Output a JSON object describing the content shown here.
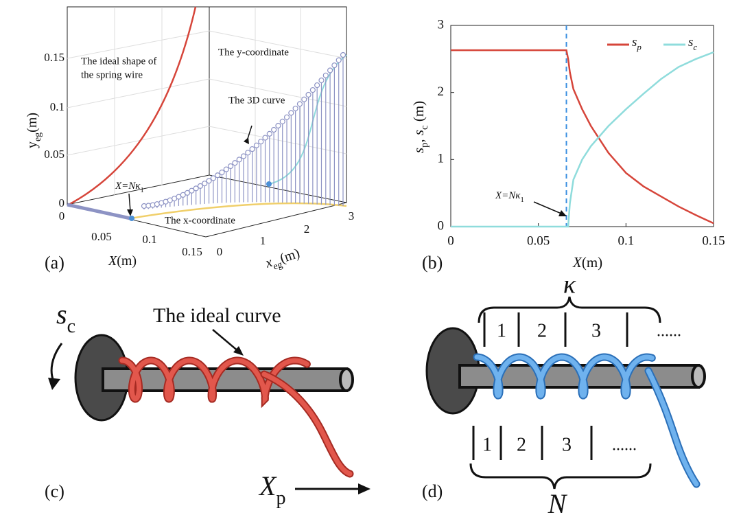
{
  "panel_a": {
    "label": "(a)",
    "ylabel": [
      {
        "text": "y"
      },
      {
        "text": "eg",
        "sub": true
      },
      {
        "text": "(m)"
      }
    ],
    "yticks": [
      "0",
      "0.05",
      "0.1",
      "0.15"
    ],
    "Xlabel": [
      {
        "text": "X",
        "italic": true
      },
      {
        "text": "(m)"
      }
    ],
    "Xticks": [
      "0",
      "0.05",
      "0.1",
      "0.15"
    ],
    "xlabel": [
      {
        "text": "x",
        "italic": true
      },
      {
        "text": "eg",
        "sub": true
      },
      {
        "text": "(m)"
      }
    ],
    "xticks": [
      "0",
      "1",
      "2",
      "3"
    ],
    "ideal_text": [
      "The ideal shape of",
      "the spring wire"
    ],
    "y_text": "The y-coordinate",
    "curve_text": "The 3D curve",
    "x_text": "The x-coordinate",
    "annotation": [
      {
        "text": "X=Nκ",
        "italic": true
      },
      {
        "text": "1",
        "sub": true
      }
    ]
  },
  "chart_data": {
    "type": "line",
    "label": "(b)",
    "xlabel": [
      {
        "text": "X",
        "italic": true
      },
      {
        "text": "(m)"
      }
    ],
    "ylabel": [
      {
        "text": "s",
        "italic": true
      },
      {
        "text": "p",
        "sub": true
      },
      {
        "text": ", "
      },
      {
        "text": "s",
        "italic": true
      },
      {
        "text": "c",
        "sub": true
      },
      {
        "text": " (m)"
      }
    ],
    "x": [
      0,
      0.066,
      0.067,
      0.068,
      0.07,
      0.075,
      0.08,
      0.09,
      0.1,
      0.11,
      0.12,
      0.13,
      0.14,
      0.15
    ],
    "series": [
      {
        "name": "sp",
        "color": "#d6453a",
        "values": [
          2.63,
          2.63,
          2.5,
          2.3,
          2.05,
          1.75,
          1.5,
          1.1,
          0.8,
          0.6,
          0.45,
          0.3,
          0.17,
          0.05
        ]
      },
      {
        "name": "sc",
        "color": "#8fdcdc",
        "values": [
          0,
          0,
          0,
          0.35,
          0.7,
          1.0,
          1.2,
          1.5,
          1.75,
          1.98,
          2.2,
          2.38,
          2.5,
          2.6
        ]
      }
    ],
    "vline": 0.066,
    "annotation": [
      {
        "text": "X=Nκ",
        "italic": true
      },
      {
        "text": "1",
        "sub": true
      }
    ],
    "xlim": [
      0,
      0.15
    ],
    "ylim": [
      0,
      3
    ],
    "xticks": [
      0,
      0.05,
      0.1,
      0.15
    ],
    "yticks": [
      0,
      1,
      2,
      3
    ],
    "legend": "top-right"
  },
  "panel_c": {
    "label": "(c)",
    "rotation": [
      {
        "text": "s",
        "italic": true
      },
      {
        "text": "c",
        "sub": true
      }
    ],
    "curve_text": "The ideal curve",
    "feed": [
      {
        "text": "X",
        "italic": true
      },
      {
        "text": "p",
        "sub": true
      }
    ]
  },
  "panel_d": {
    "label": "(d)",
    "top_brace": "κ",
    "top_cells": [
      "1",
      "2",
      "3",
      "......"
    ],
    "bottom_cells": [
      "1",
      "2",
      "3",
      "......"
    ],
    "bottom_brace": "N"
  }
}
